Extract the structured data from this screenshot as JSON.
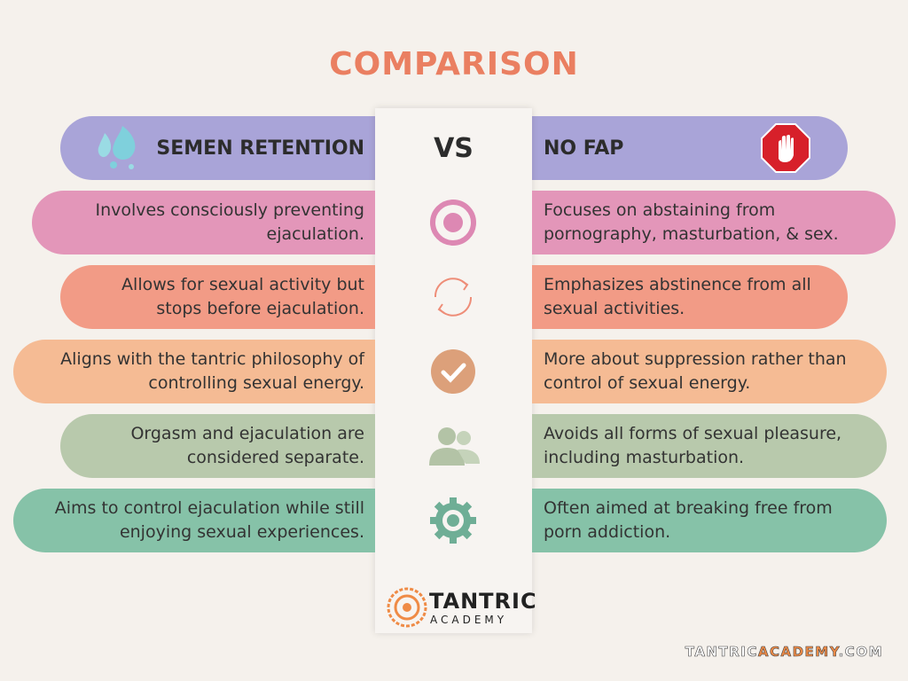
{
  "title": "COMPARISON",
  "header": {
    "left": "SEMEN RETENTION",
    "center": "VS",
    "right": "NO FAP"
  },
  "rows": [
    {
      "left": "Involves consciously preventing ejaculation.",
      "right": "Focuses on abstaining from pornography, masturbation, & sex."
    },
    {
      "left": "Allows for sexual activity but stops before ejaculation.",
      "right": "Emphasizes abstinence from all sexual activities."
    },
    {
      "left": "Aligns with the tantric philosophy of controlling sexual energy.",
      "right": "More about suppression rather than control of sexual energy."
    },
    {
      "left": "Orgasm and ejaculation are considered separate.",
      "right": "Avoids all forms of sexual pleasure, including masturbation."
    },
    {
      "left": "Aims to control ejaculation while still enjoying sexual experiences.",
      "right": "Often aimed at breaking free from porn addiction."
    }
  ],
  "logo": {
    "line1": "TANTRIC",
    "line2": "ACADEMY"
  },
  "footer": {
    "parts": [
      "TANTRIC",
      "ACADEMY",
      ".COM"
    ]
  }
}
